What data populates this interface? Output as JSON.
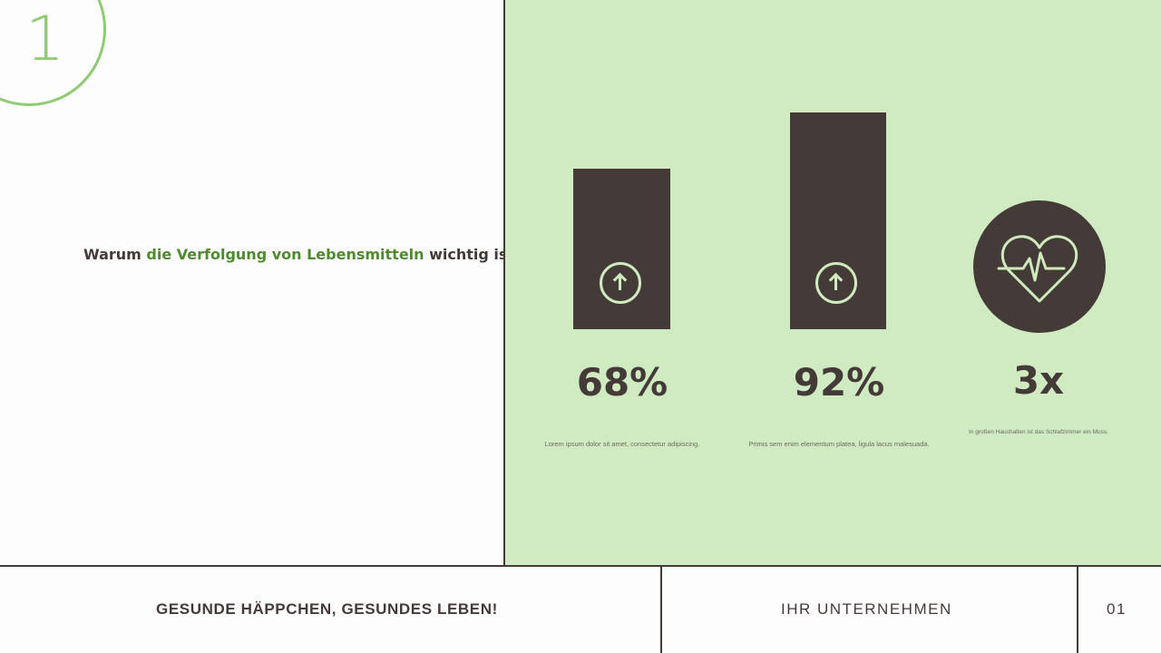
{
  "slide": {
    "number": "1",
    "heading": {
      "part1": "Warum ",
      "accent": "die Verfolgung von Lebensmitteln",
      "part2": " wichtig ist"
    }
  },
  "stats": [
    {
      "value": "68%",
      "description": "Lorem ipsum dolor sit amet, consectetur adipiscing.",
      "icon": "arrow-up-circle-icon"
    },
    {
      "value": "92%",
      "description": "Primis sem enim elementum platea, ligula lacus malesuada.",
      "icon": "arrow-up-circle-icon"
    },
    {
      "value": "3x",
      "description": "In großen Haushalten ist das Schlafzimmer ein Muss.",
      "icon": "heart-pulse-icon"
    }
  ],
  "footer": {
    "tagline": "GESUNDE HÄPPCHEN, GESUNDES LEBEN!",
    "company": "IHR  UNTERNEHMEN",
    "page": "01"
  },
  "colors": {
    "accent_green": "#8fcb74",
    "heading_green": "#4f8a2f",
    "panel_green": "#d0ebc2",
    "dark": "#443b39"
  }
}
